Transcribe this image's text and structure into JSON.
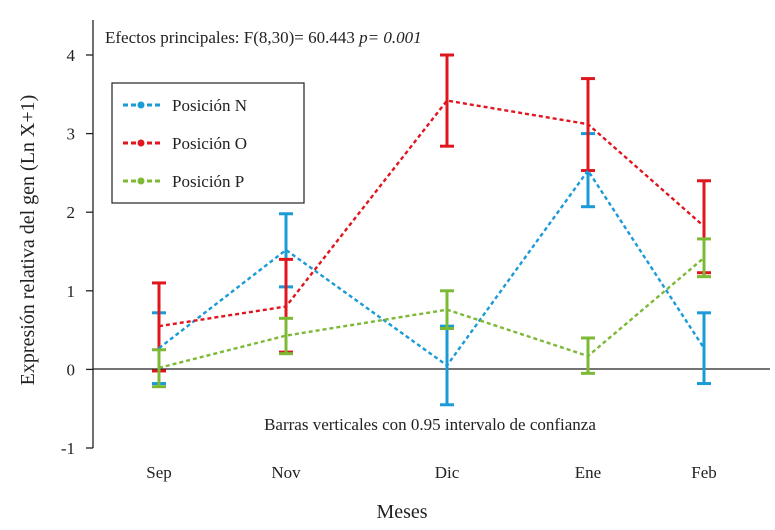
{
  "chart_data": {
    "type": "line",
    "categories": [
      "Sep",
      "Nov",
      "Dic",
      "Ene",
      "Feb"
    ],
    "xlabel": "Meses",
    "ylabel": "Expresión relativa del gen (Ln X+1)",
    "ylim": [
      -1,
      4
    ],
    "yticks": [
      "-1",
      "0",
      "1",
      "2",
      "3",
      "4"
    ],
    "annotation_top": "Efectos principales: F(8,30)= 60.443",
    "annotation_p": "p= 0.001",
    "annotation_bottom": "Barras verticales con 0.95 intervalo de confianza",
    "legend_position": "top-left",
    "grid": false,
    "series": [
      {
        "name": "Posición N",
        "color": "#1a9bd7",
        "values": [
          0.27,
          1.52,
          0.05,
          2.53,
          0.27
        ],
        "ci_low": [
          -0.18,
          1.05,
          -0.45,
          2.07,
          -0.18
        ],
        "ci_high": [
          0.72,
          1.98,
          0.55,
          3.0,
          0.72
        ]
      },
      {
        "name": "Posición O",
        "color": "#e0161f",
        "values": [
          0.55,
          0.8,
          3.42,
          3.12,
          1.82
        ],
        "ci_low": [
          -0.02,
          0.22,
          2.84,
          2.53,
          1.23
        ],
        "ci_high": [
          1.1,
          1.4,
          4.0,
          3.7,
          2.4
        ]
      },
      {
        "name": "Posición P",
        "color": "#7cb935",
        "values": [
          0.02,
          0.43,
          0.76,
          0.17,
          1.42
        ],
        "ci_low": [
          -0.22,
          0.2,
          0.52,
          -0.05,
          1.18
        ],
        "ci_high": [
          0.25,
          0.65,
          1.0,
          0.4,
          1.66
        ]
      }
    ]
  }
}
